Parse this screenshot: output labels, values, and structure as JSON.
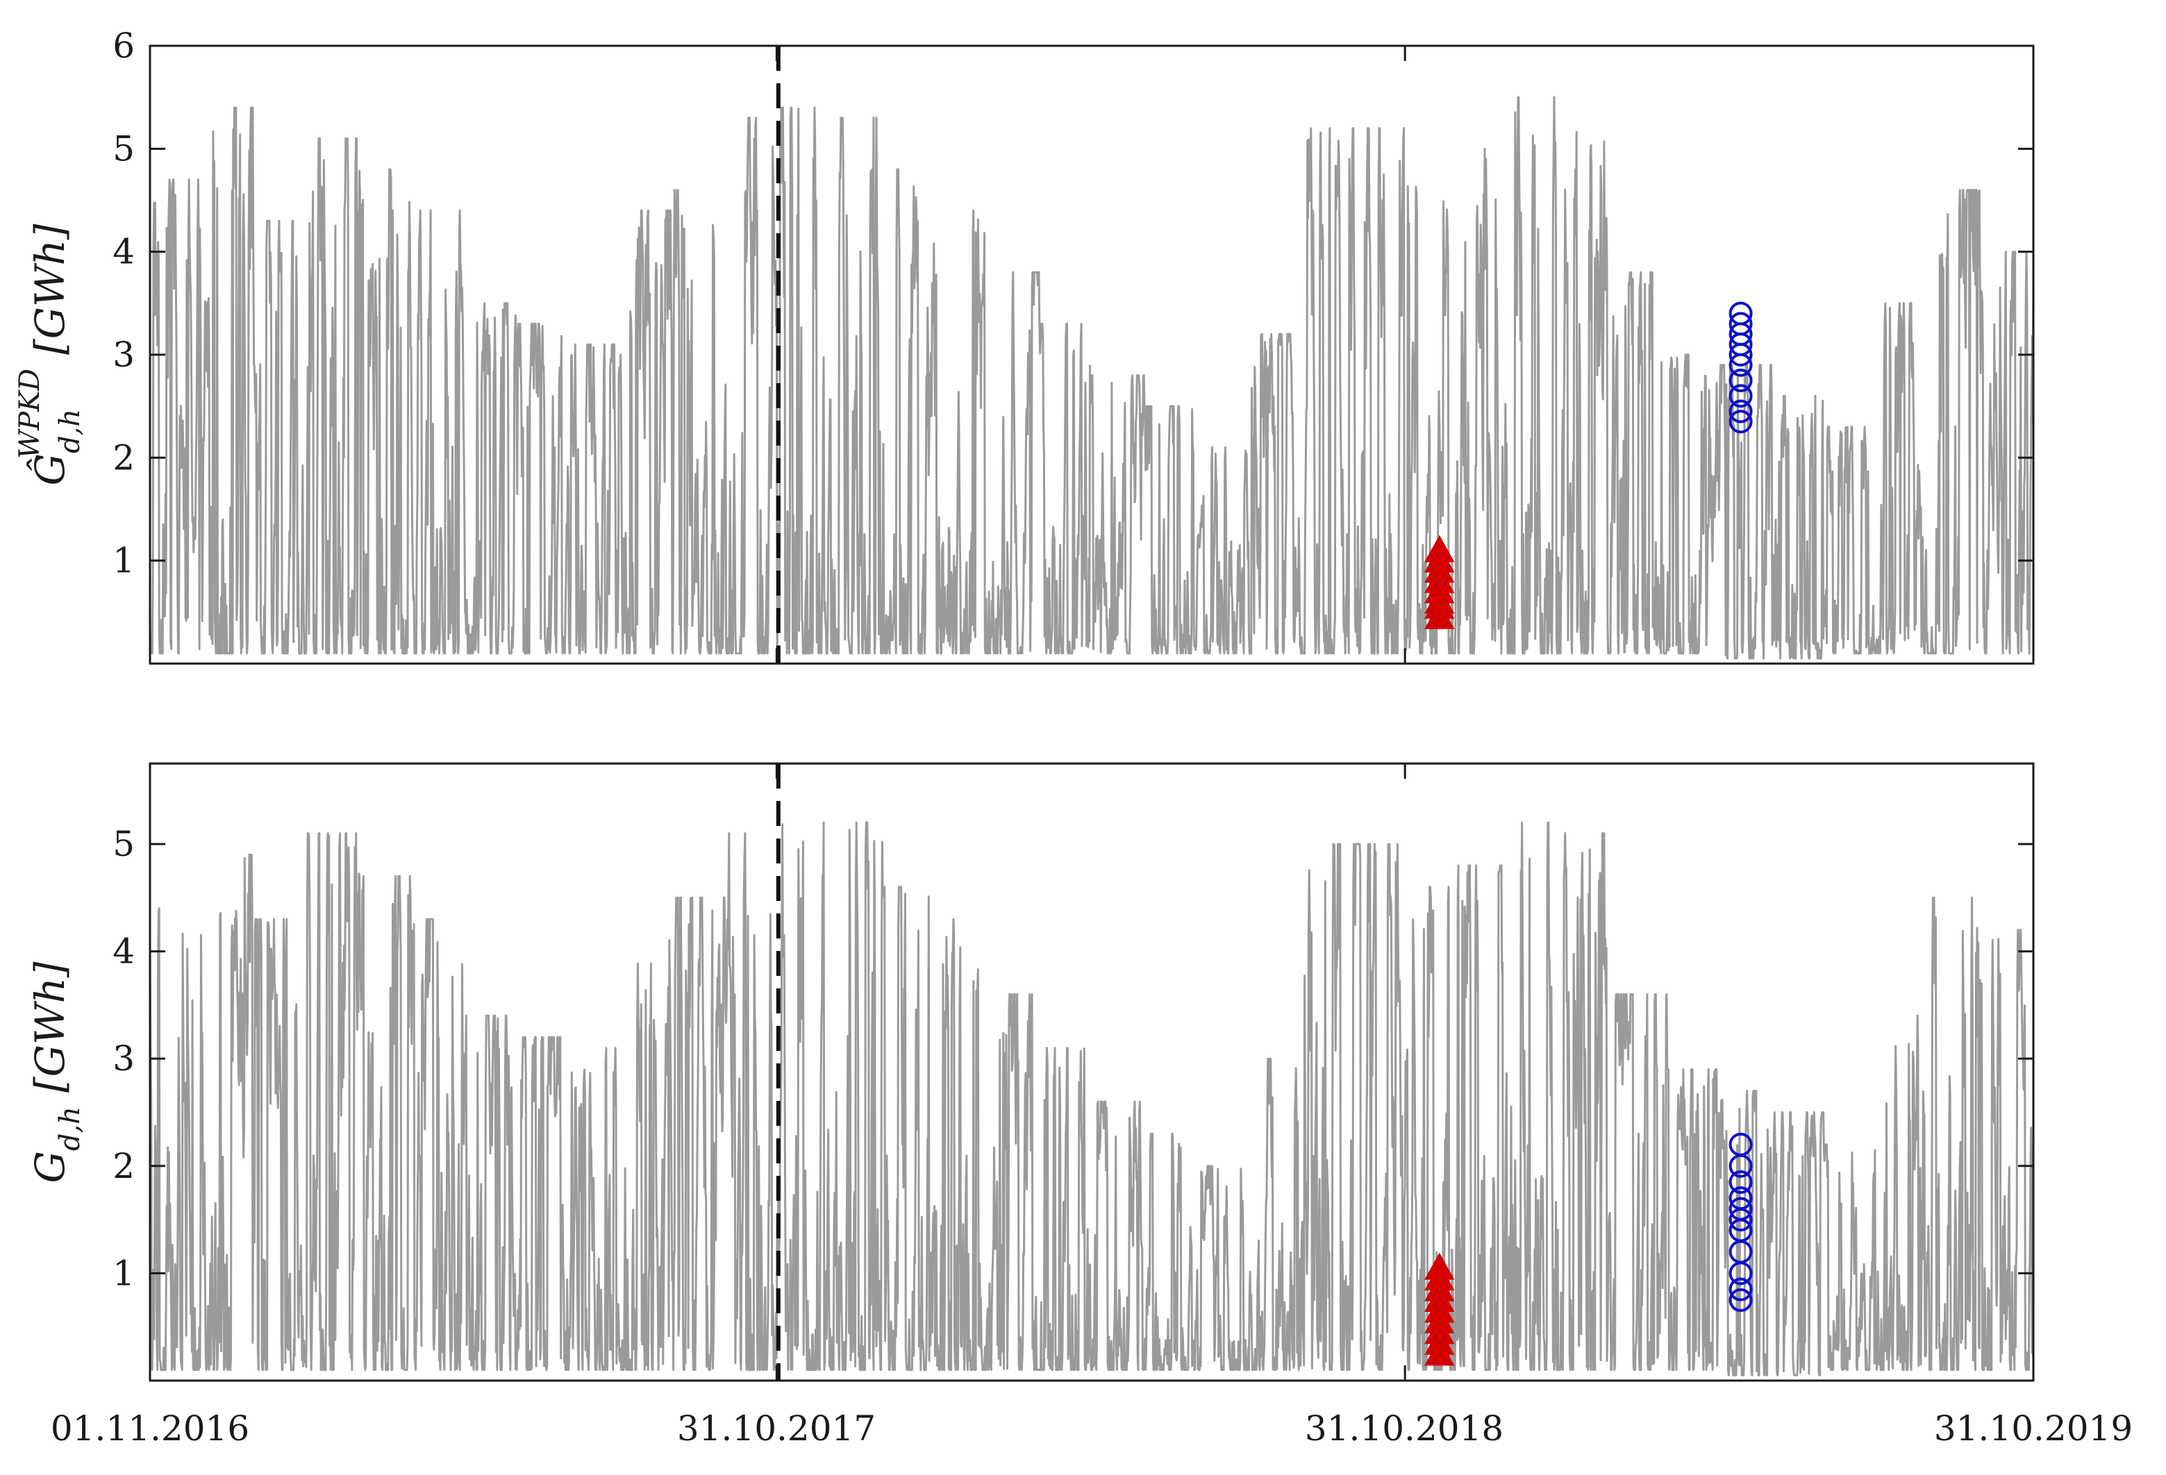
{
  "figure": {
    "x_ticks": [
      "01.11.2016",
      "31.10.2017",
      "31.10.2018",
      "31.10.2019"
    ],
    "colors": {
      "series": "#9a9a9a",
      "triangles": "#d40000",
      "circles": "#1010c8",
      "divider": "#111111",
      "axes": "#1a1a1a"
    }
  },
  "chart_data": [
    {
      "type": "line",
      "ylabel": {
        "symbol": "Ĝ",
        "superscript": "WPKD",
        "subscript": "d,h",
        "unit": "[GWh]"
      },
      "xlabel": "",
      "x_range_days": [
        0,
        1094
      ],
      "x_ticks": [
        {
          "day": 0,
          "label": "01.11.2016"
        },
        {
          "day": 364,
          "label": "31.10.2017"
        },
        {
          "day": 729,
          "label": "31.10.2018"
        },
        {
          "day": 1094,
          "label": "31.10.2019"
        }
      ],
      "ylim": [
        0,
        6
      ],
      "y_ticks": [
        1,
        2,
        3,
        4,
        5,
        6
      ],
      "divider_day": 365,
      "series": [
        {
          "style": "line",
          "color": "#9a9a9a",
          "monthly_envelope": {
            "months": [
              "Nov16",
              "Dec16",
              "Jan17",
              "Feb17",
              "Mar17",
              "Apr17",
              "May17",
              "Jun17",
              "Jul17",
              "Aug17",
              "Sep17",
              "Oct17",
              "Nov17",
              "Dec17",
              "Jan18",
              "Feb18",
              "Mar18",
              "Apr18",
              "May18",
              "Jun18",
              "Jul18",
              "Aug18",
              "Sep18",
              "Oct18",
              "Nov18",
              "Dec18",
              "Jan19",
              "Feb19",
              "Mar19",
              "Apr19",
              "May19",
              "Jun19",
              "Jul19",
              "Aug19",
              "Sep19",
              "Oct19"
            ],
            "max": [
              4.7,
              5.4,
              4.3,
              5.1,
              4.8,
              4.4,
              3.5,
              3.3,
              3.1,
              4.4,
              4.6,
              5.3,
              5.4,
              5.3,
              4.8,
              4.4,
              3.8,
              3.3,
              2.8,
              2.5,
              2.1,
              3.2,
              5.2,
              5.2,
              4.7,
              5.0,
              5.5,
              5.2,
              3.8,
              3.0,
              2.9,
              2.6,
              2.3,
              3.5,
              4.6,
              4.0
            ],
            "min": [
              0.1,
              0.1,
              0.1,
              0.1,
              0.1,
              0.1,
              0.1,
              0.1,
              0.1,
              0.1,
              0.1,
              0.1,
              0.1,
              0.1,
              0.1,
              0.1,
              0.1,
              0.1,
              0.1,
              0.1,
              0.1,
              0.1,
              0.1,
              0.1,
              0.1,
              0.1,
              0.1,
              0.1,
              0.1,
              0.1,
              0.05,
              0.05,
              0.1,
              0.1,
              0.1,
              0.1
            ]
          }
        },
        {
          "style": "triangle-markers",
          "color": "#d40000",
          "x_day": 749,
          "y_values": [
            0.45,
            0.55,
            0.6,
            0.7,
            0.8,
            0.9,
            1.0,
            1.1
          ]
        },
        {
          "style": "circle-markers",
          "color": "#1010c8",
          "x_day": 924,
          "y_values": [
            2.35,
            2.45,
            2.6,
            2.75,
            2.9,
            3.0,
            3.1,
            3.2,
            3.3,
            3.4
          ]
        }
      ]
    },
    {
      "type": "line",
      "ylabel": {
        "symbol": "G",
        "superscript": "",
        "subscript": "d,h",
        "unit": "[GWh]"
      },
      "xlabel": "",
      "x_range_days": [
        0,
        1094
      ],
      "x_ticks": [
        {
          "day": 0,
          "label": "01.11.2016"
        },
        {
          "day": 364,
          "label": "31.10.2017"
        },
        {
          "day": 729,
          "label": "31.10.2018"
        },
        {
          "day": 1094,
          "label": "31.10.2019"
        }
      ],
      "ylim": [
        0,
        5.75
      ],
      "y_ticks": [
        1,
        2,
        3,
        4,
        5
      ],
      "divider_day": 365,
      "series": [
        {
          "style": "line",
          "color": "#9a9a9a",
          "monthly_envelope": {
            "months": [
              "Nov16",
              "Dec16",
              "Jan17",
              "Feb17",
              "Mar17",
              "Apr17",
              "May17",
              "Jun17",
              "Jul17",
              "Aug17",
              "Sep17",
              "Oct17",
              "Nov17",
              "Dec17",
              "Jan18",
              "Feb18",
              "Mar18",
              "Apr18",
              "May18",
              "Jun18",
              "Jul18",
              "Aug18",
              "Sep18",
              "Oct18",
              "Nov18",
              "Dec18",
              "Jan19",
              "Feb19",
              "Mar19",
              "Apr19",
              "May19",
              "Jun19",
              "Jul19",
              "Aug19",
              "Sep19",
              "Oct19"
            ],
            "max": [
              4.4,
              4.9,
              4.3,
              5.1,
              4.7,
              4.3,
              3.4,
              3.2,
              3.1,
              4.2,
              4.5,
              5.1,
              5.2,
              5.2,
              4.6,
              4.3,
              3.6,
              3.1,
              2.6,
              2.3,
              2.0,
              3.0,
              5.0,
              5.0,
              4.6,
              4.8,
              5.2,
              5.1,
              3.6,
              2.9,
              2.7,
              2.5,
              2.2,
              3.4,
              4.5,
              4.2
            ],
            "min": [
              0.1,
              0.1,
              0.1,
              0.1,
              0.1,
              0.1,
              0.1,
              0.1,
              0.1,
              0.1,
              0.1,
              0.1,
              0.1,
              0.1,
              0.1,
              0.1,
              0.1,
              0.1,
              0.1,
              0.1,
              0.1,
              0.1,
              0.1,
              0.1,
              0.1,
              0.1,
              0.1,
              0.1,
              0.1,
              0.1,
              0.05,
              0.05,
              0.1,
              0.1,
              0.1,
              0.1
            ]
          }
        },
        {
          "style": "triangle-markers",
          "color": "#d40000",
          "x_day": 749,
          "y_values": [
            0.25,
            0.35,
            0.45,
            0.55,
            0.65,
            0.75,
            0.85,
            0.95,
            1.05
          ]
        },
        {
          "style": "circle-markers",
          "color": "#1010c8",
          "x_day": 924,
          "y_values": [
            0.75,
            0.85,
            1.0,
            1.2,
            1.4,
            1.5,
            1.6,
            1.7,
            1.85,
            2.0,
            2.2
          ]
        }
      ]
    }
  ]
}
